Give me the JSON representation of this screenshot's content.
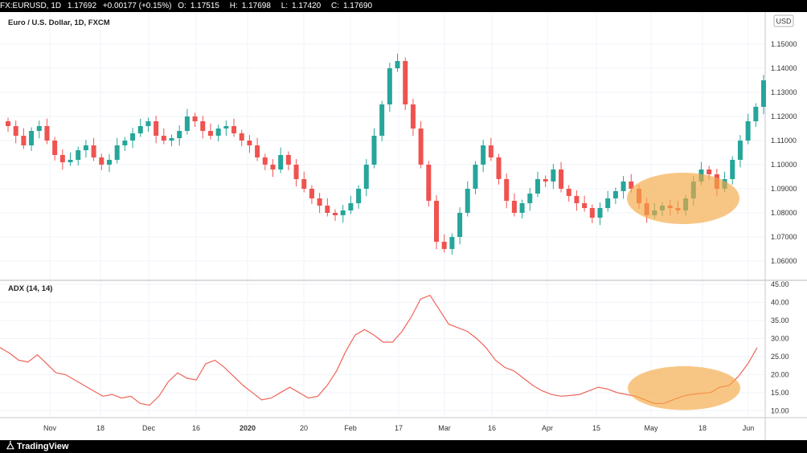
{
  "header": {
    "symbol": "FX:EURUSD, 1D",
    "last": "1.17692",
    "change": "+0.00177 (+0.15%)",
    "o_label": "O:",
    "o_value": "1.17515",
    "h_label": "H:",
    "h_value": "1.17698",
    "l_label": "L:",
    "l_value": "1.17420",
    "c_label": "C:",
    "c_value": "1.17690"
  },
  "footer": {
    "brand": "TradingView",
    "logo_icon": "tradingview-logo-icon"
  },
  "colors": {
    "up": "#26a69a",
    "down": "#ef5350",
    "adx": "#f0645a",
    "highlight": "#f5a742"
  },
  "chart_data": [
    {
      "type": "candlestick",
      "title": "Euro / U.S. Dollar, 1D, FXCM",
      "currency_label": "USD",
      "ylim": [
        1.055,
        1.155
      ],
      "yticks": [
        "1.15000",
        "1.14000",
        "1.13000",
        "1.12000",
        "1.11000",
        "1.10000",
        "1.09000",
        "1.08000",
        "1.07000",
        "1.06000"
      ],
      "xticks": [
        "Nov",
        "18",
        "Dec",
        "16",
        "2020",
        "20",
        "Feb",
        "17",
        "Mar",
        "16",
        "Apr",
        "15",
        "May",
        "18",
        "Jun"
      ],
      "close_path": [
        1.116,
        1.112,
        1.108,
        1.114,
        1.116,
        1.11,
        1.104,
        1.101,
        1.102,
        1.106,
        1.108,
        1.103,
        1.1,
        1.102,
        1.108,
        1.11,
        1.113,
        1.116,
        1.118,
        1.112,
        1.11,
        1.111,
        1.114,
        1.12,
        1.118,
        1.114,
        1.112,
        1.115,
        1.116,
        1.113,
        1.11,
        1.108,
        1.103,
        1.1,
        1.098,
        1.104,
        1.1,
        1.094,
        1.09,
        1.086,
        1.083,
        1.08,
        1.079,
        1.081,
        1.084,
        1.09,
        1.1,
        1.112,
        1.125,
        1.14,
        1.143,
        1.125,
        1.115,
        1.1,
        1.085,
        1.068,
        1.065,
        1.07,
        1.08,
        1.09,
        1.1,
        1.108,
        1.103,
        1.094,
        1.085,
        1.08,
        1.084,
        1.088,
        1.094,
        1.093,
        1.098,
        1.09,
        1.087,
        1.084,
        1.082,
        1.078,
        1.082,
        1.086,
        1.089,
        1.093,
        1.09,
        1.084,
        1.079,
        1.081,
        1.083,
        1.082,
        1.081,
        1.086,
        1.093,
        1.098,
        1.096,
        1.09,
        1.094,
        1.102,
        1.11,
        1.118,
        1.124,
        1.135
      ],
      "annotation": {
        "shape": "ellipse",
        "color": "#f5a742",
        "from_x": "Apr 29",
        "to_x": "May 29",
        "y_from": 1.078,
        "y_to": 1.094
      }
    },
    {
      "type": "line",
      "title": "ADX (14, 14)",
      "ylim": [
        8.5,
        45.5
      ],
      "yticks": [
        "45.00",
        "40.00",
        "35.00",
        "30.00",
        "25.00",
        "20.00",
        "15.00",
        "10.00"
      ],
      "series": [
        {
          "values": [
            27.5,
            26,
            24,
            23.5,
            25.5,
            23,
            20.5,
            20,
            18.5,
            17,
            15.5,
            14,
            14.5,
            13.5,
            14,
            12,
            11.5,
            14,
            18,
            20.5,
            19,
            18.5,
            23,
            24,
            22,
            19.5,
            17,
            15,
            13,
            13.5,
            15,
            16.5,
            15,
            13.5,
            14,
            17,
            21,
            26.5,
            31,
            32.5,
            31,
            29,
            29,
            32,
            36,
            41,
            42,
            38,
            34,
            33,
            32,
            30,
            27.5,
            24,
            22,
            21,
            19,
            17,
            15.5,
            14.5,
            14,
            14.2,
            14.5,
            15.5,
            16.5,
            16,
            15,
            14.5,
            14,
            13,
            12,
            12,
            13,
            14,
            14.5,
            14.8,
            15,
            16.5,
            17,
            19.5,
            23,
            27.5
          ]
        }
      ],
      "annotation": {
        "shape": "ellipse",
        "color": "#f5a742",
        "from_x": "Apr 29",
        "to_x": "Jun 1",
        "y_from": 11.5,
        "y_to": 21
      }
    }
  ]
}
